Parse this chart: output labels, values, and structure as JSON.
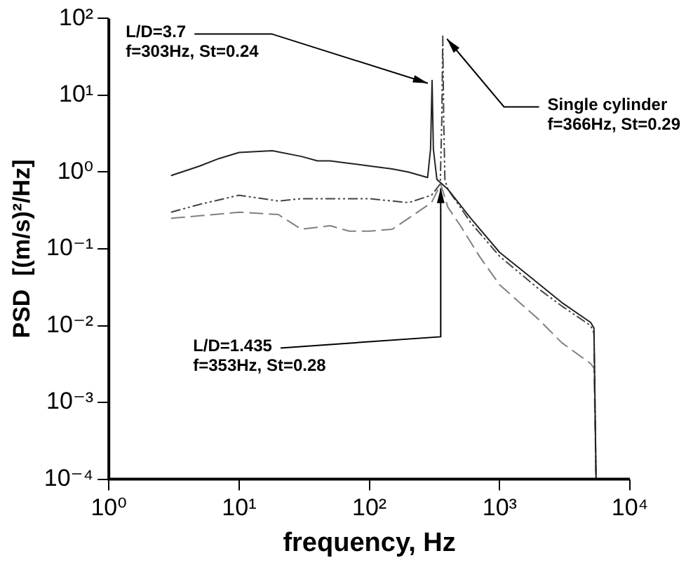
{
  "chart_data": {
    "type": "line",
    "xlabel": "frequency, Hz",
    "ylabel": "PSD  [(m/s)²/Hz]",
    "log": "xy",
    "grid": false,
    "legend": false,
    "marker": "none",
    "xlim": [
      1,
      10000
    ],
    "ylim": [
      0.0001,
      100
    ],
    "xticks": [
      {
        "value": 1,
        "label": "10⁰"
      },
      {
        "value": 10,
        "label": "10¹"
      },
      {
        "value": 100,
        "label": "10²"
      },
      {
        "value": 1000,
        "label": "10³"
      },
      {
        "value": 10000,
        "label": "10⁴"
      }
    ],
    "yticks": [
      {
        "value": 0.0001,
        "label": "10⁻⁴"
      },
      {
        "value": 0.001,
        "label": "10⁻³"
      },
      {
        "value": 0.01,
        "label": "10⁻²"
      },
      {
        "value": 0.1,
        "label": "10⁻¹"
      },
      {
        "value": 1,
        "label": "10⁰"
      },
      {
        "value": 10,
        "label": "10¹"
      },
      {
        "value": 100,
        "label": "10²"
      }
    ],
    "series": [
      {
        "color": "#222222",
        "line_style": "solid",
        "x": [
          3,
          5,
          7,
          10,
          18,
          30,
          40,
          50,
          70,
          100,
          150,
          200,
          280,
          295,
          303,
          310,
          330,
          400,
          600,
          1000,
          2000,
          3000,
          5000,
          5300,
          5500
        ],
        "values": [
          0.9,
          1.2,
          1.5,
          1.8,
          1.9,
          1.6,
          1.4,
          1.4,
          1.3,
          1.2,
          1.1,
          1.0,
          0.85,
          2,
          15.6,
          2,
          0.8,
          0.6,
          0.25,
          0.09,
          0.035,
          0.02,
          0.011,
          0.0093,
          0.0001
        ]
      },
      {
        "color": "#444444",
        "line_style": "dotted",
        "x": [
          3,
          5,
          10,
          20,
          30,
          50,
          100,
          200,
          300,
          350,
          360,
          366,
          372,
          380,
          400,
          600,
          1000,
          2000,
          3000,
          5000,
          5300,
          5500
        ],
        "values": [
          0.3,
          0.38,
          0.5,
          0.42,
          0.45,
          0.45,
          0.45,
          0.4,
          0.5,
          0.7,
          5,
          59,
          5,
          0.8,
          0.6,
          0.22,
          0.08,
          0.03,
          0.018,
          0.01,
          0.008,
          0.0001
        ]
      },
      {
        "color": "#808080",
        "line_style": "dashed",
        "x": [
          3,
          5,
          10,
          20,
          30,
          50,
          70,
          100,
          150,
          200,
          300,
          353,
          400,
          500,
          700,
          1000,
          2000,
          3000,
          5000,
          5300,
          5500
        ],
        "values": [
          0.25,
          0.27,
          0.3,
          0.28,
          0.18,
          0.2,
          0.17,
          0.17,
          0.18,
          0.25,
          0.4,
          0.7,
          0.35,
          0.2,
          0.08,
          0.034,
          0.012,
          0.006,
          0.0032,
          0.0028,
          0.0001
        ]
      }
    ],
    "annotations": [
      {
        "text": "L/D=3.7\nf=303Hz, St=0.24",
        "x": 303,
        "y": 15.6
      },
      {
        "text": "Single cylinder\nf=366Hz, St=0.29",
        "x": 366,
        "y": 59
      },
      {
        "text": "L/D=1.435\nf=353Hz, St=0.28",
        "x": 353,
        "y": 0.7
      }
    ]
  }
}
